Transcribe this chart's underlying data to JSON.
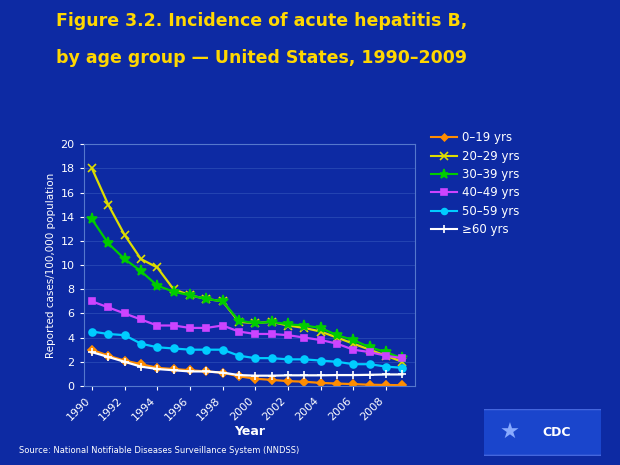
{
  "title_line1": "Figure 3.2. Incidence of acute hepatitis B,",
  "title_line2": "by age group — United States, 1990–2009",
  "xlabel": "Year",
  "ylabel": "Reported cases/100,000 population",
  "source": "Source: National Notifiable Diseases Surveillance System (NNDSS)",
  "background_color": "#0d2aa3",
  "plot_bg_color": "#0d2aa3",
  "title_color": "#FFD700",
  "axis_label_color": "#ffffff",
  "tick_label_color": "#ffffff",
  "grid_color": "#3355bb",
  "years": [
    1990,
    1991,
    1992,
    1993,
    1994,
    1995,
    1996,
    1997,
    1998,
    1999,
    2000,
    2001,
    2002,
    2003,
    2004,
    2005,
    2006,
    2007,
    2008,
    2009
  ],
  "series": {
    "0–19 yrs": {
      "color": "#FF8C00",
      "marker": "D",
      "markersize": 4,
      "values": [
        3.0,
        2.5,
        2.1,
        1.8,
        1.5,
        1.4,
        1.3,
        1.2,
        1.1,
        0.8,
        0.6,
        0.5,
        0.4,
        0.35,
        0.25,
        0.2,
        0.15,
        0.1,
        0.08,
        0.06
      ]
    },
    "20–29 yrs": {
      "color": "#DDDD00",
      "marker": "x",
      "markersize": 6,
      "values": [
        18.0,
        15.0,
        12.5,
        10.5,
        9.8,
        8.0,
        7.5,
        7.2,
        7.0,
        5.3,
        5.2,
        5.3,
        5.0,
        4.8,
        4.5,
        4.0,
        3.5,
        3.0,
        2.5,
        2.0
      ]
    },
    "30–39 yrs": {
      "color": "#00CC00",
      "marker": "*",
      "markersize": 8,
      "values": [
        13.8,
        11.8,
        10.5,
        9.5,
        8.3,
        7.8,
        7.5,
        7.2,
        7.0,
        5.4,
        5.2,
        5.3,
        5.1,
        5.0,
        4.8,
        4.2,
        3.8,
        3.2,
        2.8,
        2.28
      ]
    },
    "40–49 yrs": {
      "color": "#CC44FF",
      "marker": "s",
      "markersize": 5,
      "values": [
        7.0,
        6.5,
        6.0,
        5.5,
        5.0,
        5.0,
        4.8,
        4.8,
        5.0,
        4.5,
        4.3,
        4.3,
        4.2,
        4.0,
        3.8,
        3.5,
        3.0,
        2.8,
        2.5,
        2.3
      ]
    },
    "50–59 yrs": {
      "color": "#00CCFF",
      "marker": "o",
      "markersize": 5,
      "values": [
        4.5,
        4.3,
        4.2,
        3.5,
        3.2,
        3.1,
        3.0,
        3.0,
        3.0,
        2.5,
        2.3,
        2.3,
        2.2,
        2.2,
        2.1,
        2.0,
        1.8,
        1.8,
        1.6,
        1.5
      ]
    },
    "≥60 yrs": {
      "color": "#ffffff",
      "marker": "+",
      "markersize": 6,
      "values": [
        2.8,
        2.4,
        2.0,
        1.6,
        1.4,
        1.3,
        1.2,
        1.2,
        1.1,
        0.9,
        0.85,
        0.85,
        0.88,
        0.88,
        0.88,
        0.9,
        0.9,
        0.92,
        0.95,
        0.95
      ]
    }
  },
  "ylim": [
    0,
    20
  ],
  "yticks": [
    0,
    2,
    4,
    6,
    8,
    10,
    12,
    14,
    16,
    18,
    20
  ],
  "xticks": [
    1990,
    1992,
    1994,
    1996,
    1998,
    2000,
    2002,
    2004,
    2006,
    2008
  ]
}
